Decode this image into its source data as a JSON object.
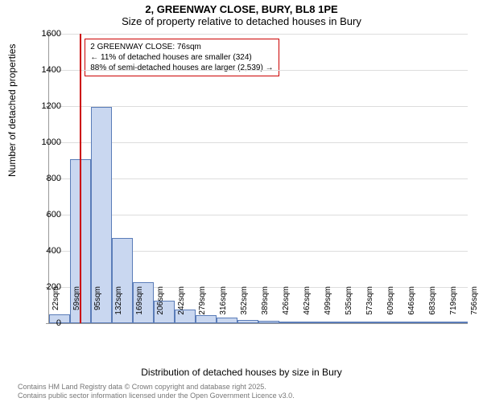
{
  "title": "2, GREENWAY CLOSE, BURY, BL8 1PE",
  "subtitle": "Size of property relative to detached houses in Bury",
  "ylabel": "Number of detached properties",
  "xlabel": "Distribution of detached houses by size in Bury",
  "footer_line1": "Contains HM Land Registry data © Crown copyright and database right 2025.",
  "footer_line2": "Contains public sector information licensed under the Open Government Licence v3.0.",
  "info_box": {
    "line1": "2 GREENWAY CLOSE: 76sqm",
    "line2": "← 11% of detached houses are smaller (324)",
    "line3": "88% of semi-detached houses are larger (2,539) →"
  },
  "chart": {
    "type": "histogram",
    "ylim": [
      0,
      1600
    ],
    "ytick_step": 200,
    "background_color": "#ffffff",
    "grid_color": "#dddddd",
    "bar_fill": "#c9d7f0",
    "bar_border": "#5a7cb8",
    "marker_color": "#cc0000",
    "marker_x_value": 76,
    "x_start": 22,
    "x_step": 36.7,
    "xtick_labels": [
      "22sqm",
      "59sqm",
      "95sqm",
      "132sqm",
      "169sqm",
      "206sqm",
      "242sqm",
      "279sqm",
      "316sqm",
      "352sqm",
      "389sqm",
      "426sqm",
      "462sqm",
      "499sqm",
      "535sqm",
      "573sqm",
      "609sqm",
      "646sqm",
      "683sqm",
      "719sqm",
      "756sqm"
    ],
    "bars": [
      50,
      905,
      1195,
      470,
      225,
      125,
      75,
      45,
      30,
      20,
      15,
      5,
      3,
      3,
      2,
      2,
      2,
      1,
      1,
      1
    ]
  }
}
